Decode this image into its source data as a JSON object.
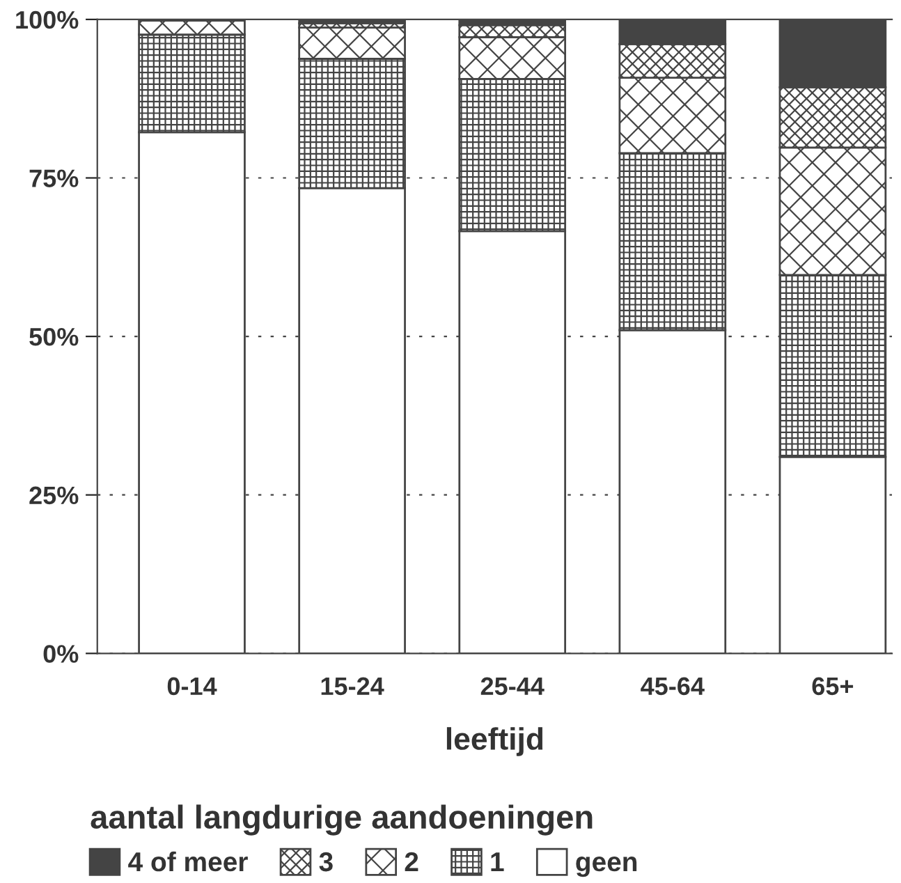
{
  "chart_data": {
    "type": "bar",
    "stacked": true,
    "xlabel": "leeftijd",
    "legend_title": "aantal langdurige aandoeningen",
    "categories": [
      "0-14",
      "15-24",
      "25-44",
      "45-64",
      "65+"
    ],
    "series": [
      {
        "name": "geen",
        "color": "#ffffff",
        "values": [
          82.2,
          73.4,
          66.6,
          51.0,
          31.0
        ]
      },
      {
        "name": "1",
        "color": "#444444",
        "values": [
          15.4,
          20.4,
          24.0,
          27.9,
          28.7
        ]
      },
      {
        "name": "2",
        "color": "#444444",
        "values": [
          2.2,
          4.9,
          6.6,
          11.9,
          20.1
        ]
      },
      {
        "name": "3",
        "color": "#444444",
        "values": [
          null,
          0.7,
          1.9,
          5.3,
          9.5
        ]
      },
      {
        "name": "4 of meer",
        "color": "#444444",
        "values": [
          0,
          0.6,
          0.9,
          3.9,
          10.7
        ]
      }
    ],
    "ylim": [
      0,
      100
    ],
    "yticks": [
      {
        "value": 0,
        "label": "0%"
      },
      {
        "value": 25,
        "label": "25%"
      },
      {
        "value": 50,
        "label": "50%"
      },
      {
        "value": 75,
        "label": "75%"
      },
      {
        "value": 100,
        "label": "100%"
      }
    ],
    "grid": "y",
    "legend": "bottom"
  }
}
